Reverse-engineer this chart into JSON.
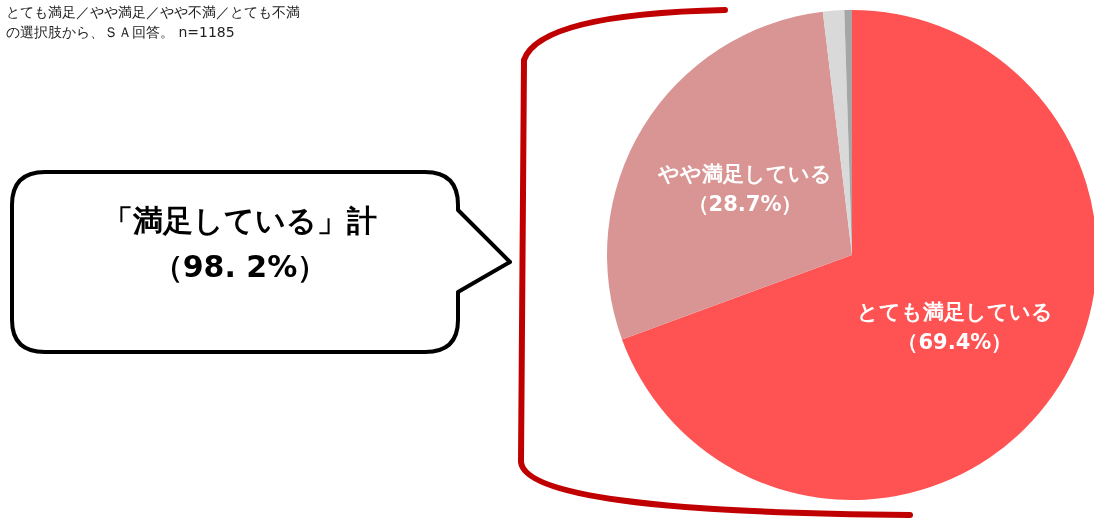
{
  "chart_data": {
    "type": "pie",
    "categories": [
      "とても満足している",
      "やや満足している",
      null,
      null
    ],
    "values": [
      69.4,
      28.7,
      1.4,
      0.5
    ],
    "colors": [
      "#ff5252",
      "#d99594",
      "#d9d9d9",
      "#a6a6a6"
    ],
    "value_labels": [
      "（69.4%）",
      "（28.7%）",
      null,
      null
    ],
    "annotations": [
      "とても満足／やや満足／やや不満／とても不満の選択肢から、ＳＡ回答。 n=1185",
      "「満足している」計（98. 2%）"
    ],
    "legend": false
  }
}
